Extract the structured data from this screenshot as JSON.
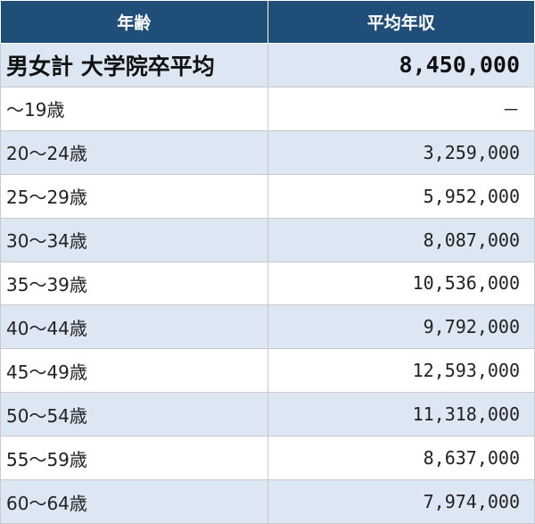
{
  "table": {
    "header": [
      "年齢",
      "平均年収"
    ],
    "rows": [
      [
        "男女計 大学院卒平均",
        "8,450,000"
      ],
      [
        "～19歳",
        "－"
      ],
      [
        "20～24歳",
        "3,259,000"
      ],
      [
        "25～29歳",
        "5,952,000"
      ],
      [
        "30～34歳",
        "8,087,000"
      ],
      [
        "35～39歳",
        "10,536,000"
      ],
      [
        "40～44歳",
        "9,792,000"
      ],
      [
        "45～49歳",
        "12,593,000"
      ],
      [
        "50～54歳",
        "11,318,000"
      ],
      [
        "55～59歳",
        "8,637,000"
      ],
      [
        "60～64歳",
        "7,974,000"
      ]
    ]
  }
}
